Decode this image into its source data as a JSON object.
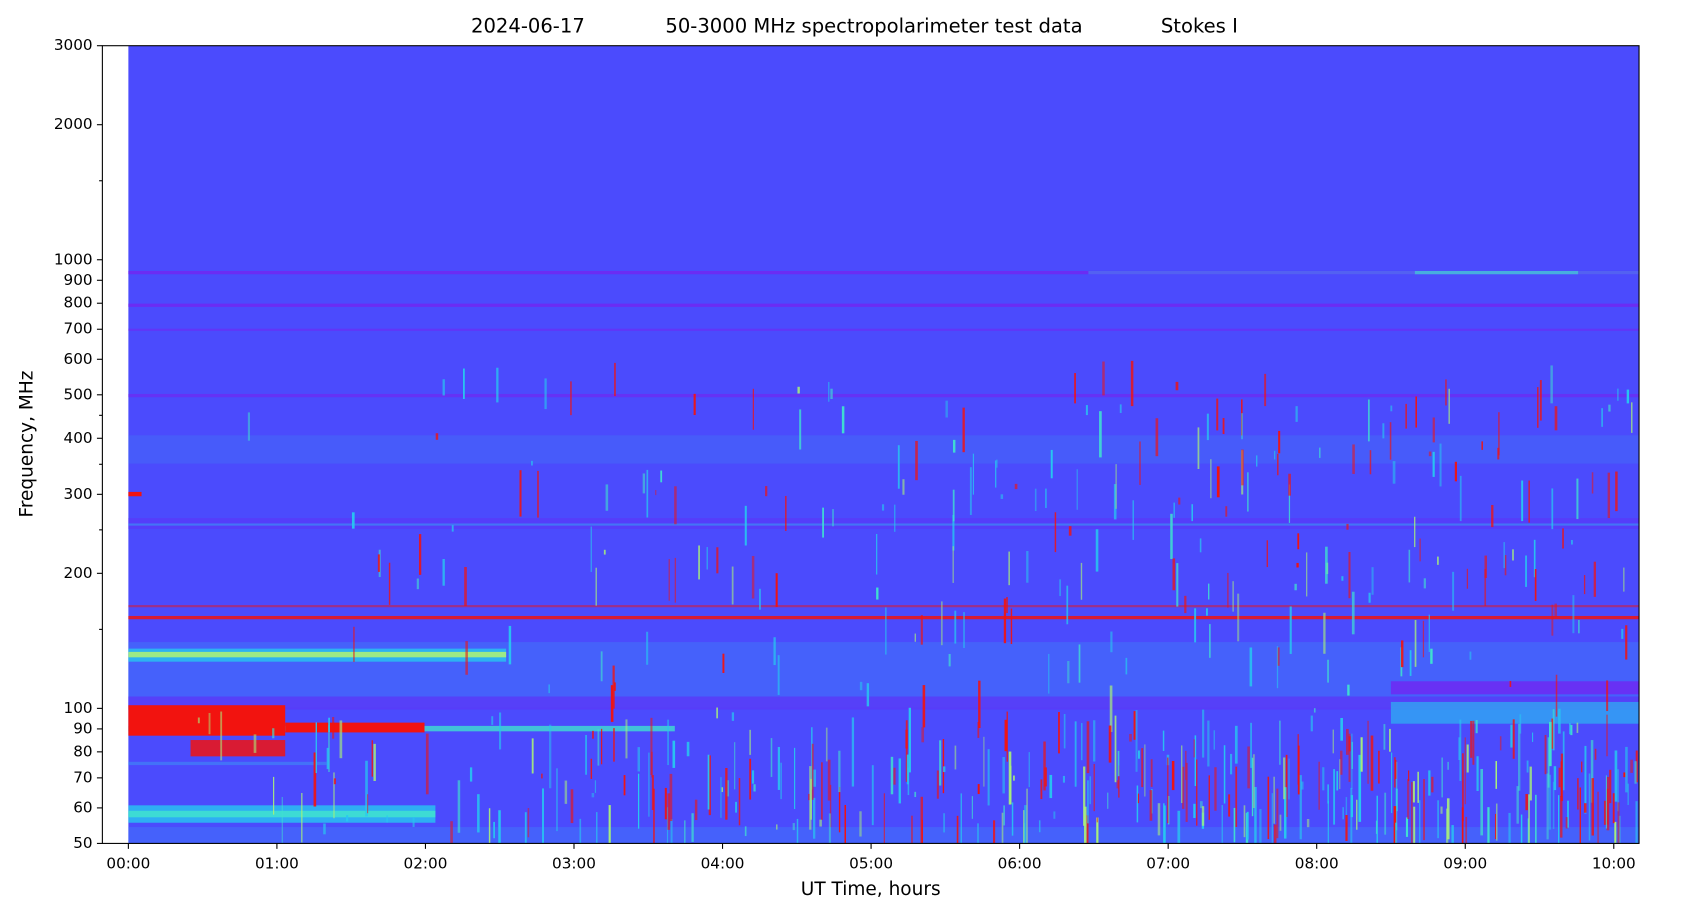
{
  "chart_data": {
    "type": "spectrogram",
    "title": [
      "2024-06-17",
      "50-3000 MHz spectropolarimeter test data",
      "Stokes I"
    ],
    "x_label": "UT Time, hours",
    "y_label": "Frequency, MHz",
    "xlim": [
      -0.175,
      10.17
    ],
    "ylim": [
      50,
      3000
    ],
    "yscale": "log",
    "colormap": "rainbow",
    "xticks": [
      {
        "value": 0,
        "label": "00:00"
      },
      {
        "value": 1,
        "label": "01:00"
      },
      {
        "value": 2,
        "label": "02:00"
      },
      {
        "value": 3,
        "label": "03:00"
      },
      {
        "value": 4,
        "label": "04:00"
      },
      {
        "value": 5,
        "label": "05:00"
      },
      {
        "value": 6,
        "label": "06:00"
      },
      {
        "value": 7,
        "label": "07:00"
      },
      {
        "value": 8,
        "label": "08:00"
      },
      {
        "value": 9,
        "label": "09:00"
      },
      {
        "value": 10,
        "label": "10:00"
      }
    ],
    "yticks": [
      50,
      60,
      70,
      80,
      90,
      100,
      200,
      300,
      400,
      500,
      600,
      700,
      800,
      900,
      1000,
      2000,
      3000
    ],
    "yminor": [
      150,
      250,
      350,
      450,
      1500
    ]
  }
}
